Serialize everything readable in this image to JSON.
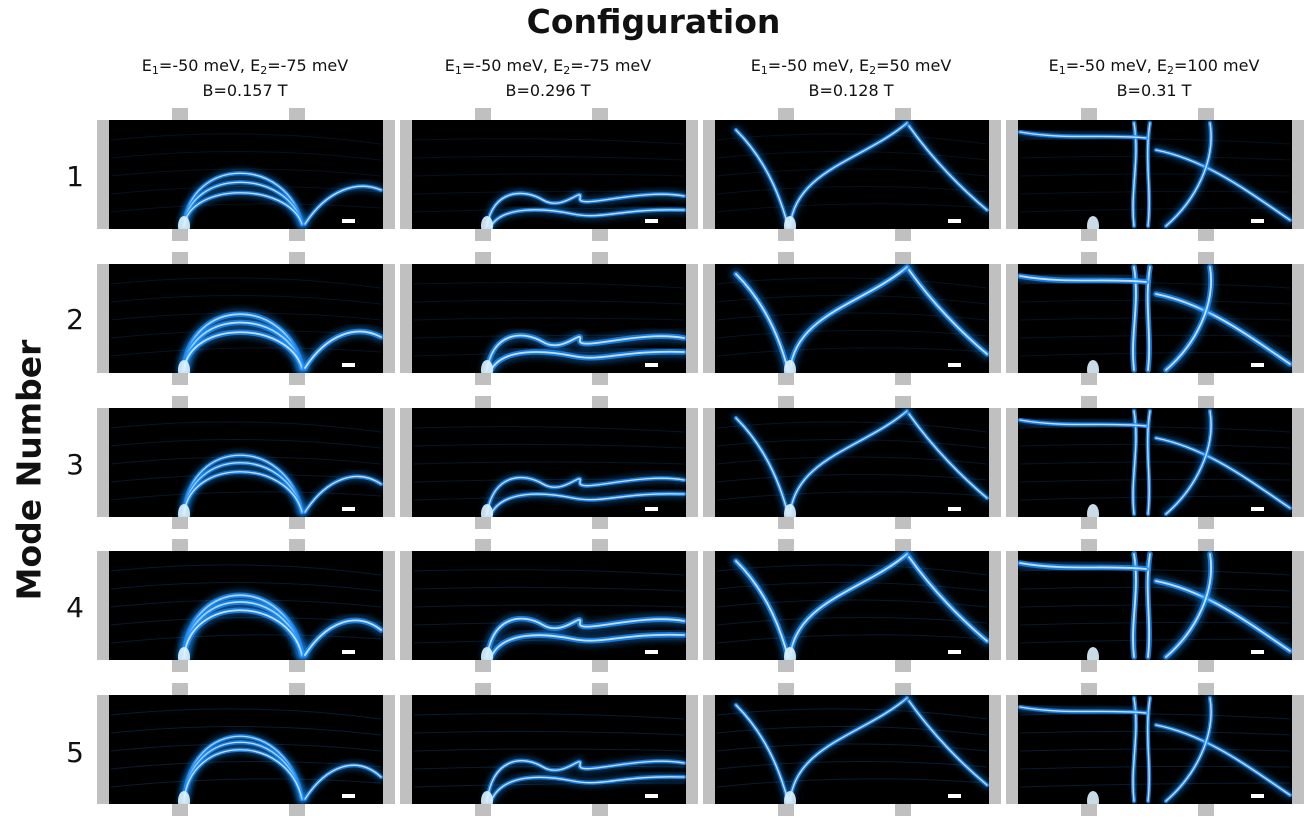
{
  "title": "Configuration",
  "ylabel": "Mode Number",
  "columns": [
    {
      "line1": {
        "e1_label": "E",
        "e1_sub": "1",
        "e1_val": "=-50 meV, ",
        "e2_label": "E",
        "e2_sub": "2",
        "e2_val": "=-75 meV"
      },
      "line2": "B=0.157 T"
    },
    {
      "line1": {
        "e1_label": "E",
        "e1_sub": "1",
        "e1_val": "=-50 meV, ",
        "e2_label": "E",
        "e2_sub": "2",
        "e2_val": "=-75 meV"
      },
      "line2": "B=0.296 T"
    },
    {
      "line1": {
        "e1_label": "E",
        "e1_sub": "1",
        "e1_val": "=-50 meV, ",
        "e2_label": "E",
        "e2_sub": "2",
        "e2_val": "=50 meV"
      },
      "line2": "B=0.128 T"
    },
    {
      "line1": {
        "e1_label": "E",
        "e1_sub": "1",
        "e1_val": "=-50 meV, ",
        "e2_label": "E",
        "e2_sub": "2",
        "e2_val": "=100 meV"
      },
      "line2": "B=0.31 T"
    }
  ],
  "rows": [
    "1",
    "2",
    "3",
    "4",
    "5"
  ],
  "colors": {
    "panel_background": "#000000",
    "lead_gray": "#c0c0c0",
    "pattern_glow": "#1e8fff",
    "pattern_core": "#dff3ff",
    "scale_bar": "#ffffff"
  }
}
